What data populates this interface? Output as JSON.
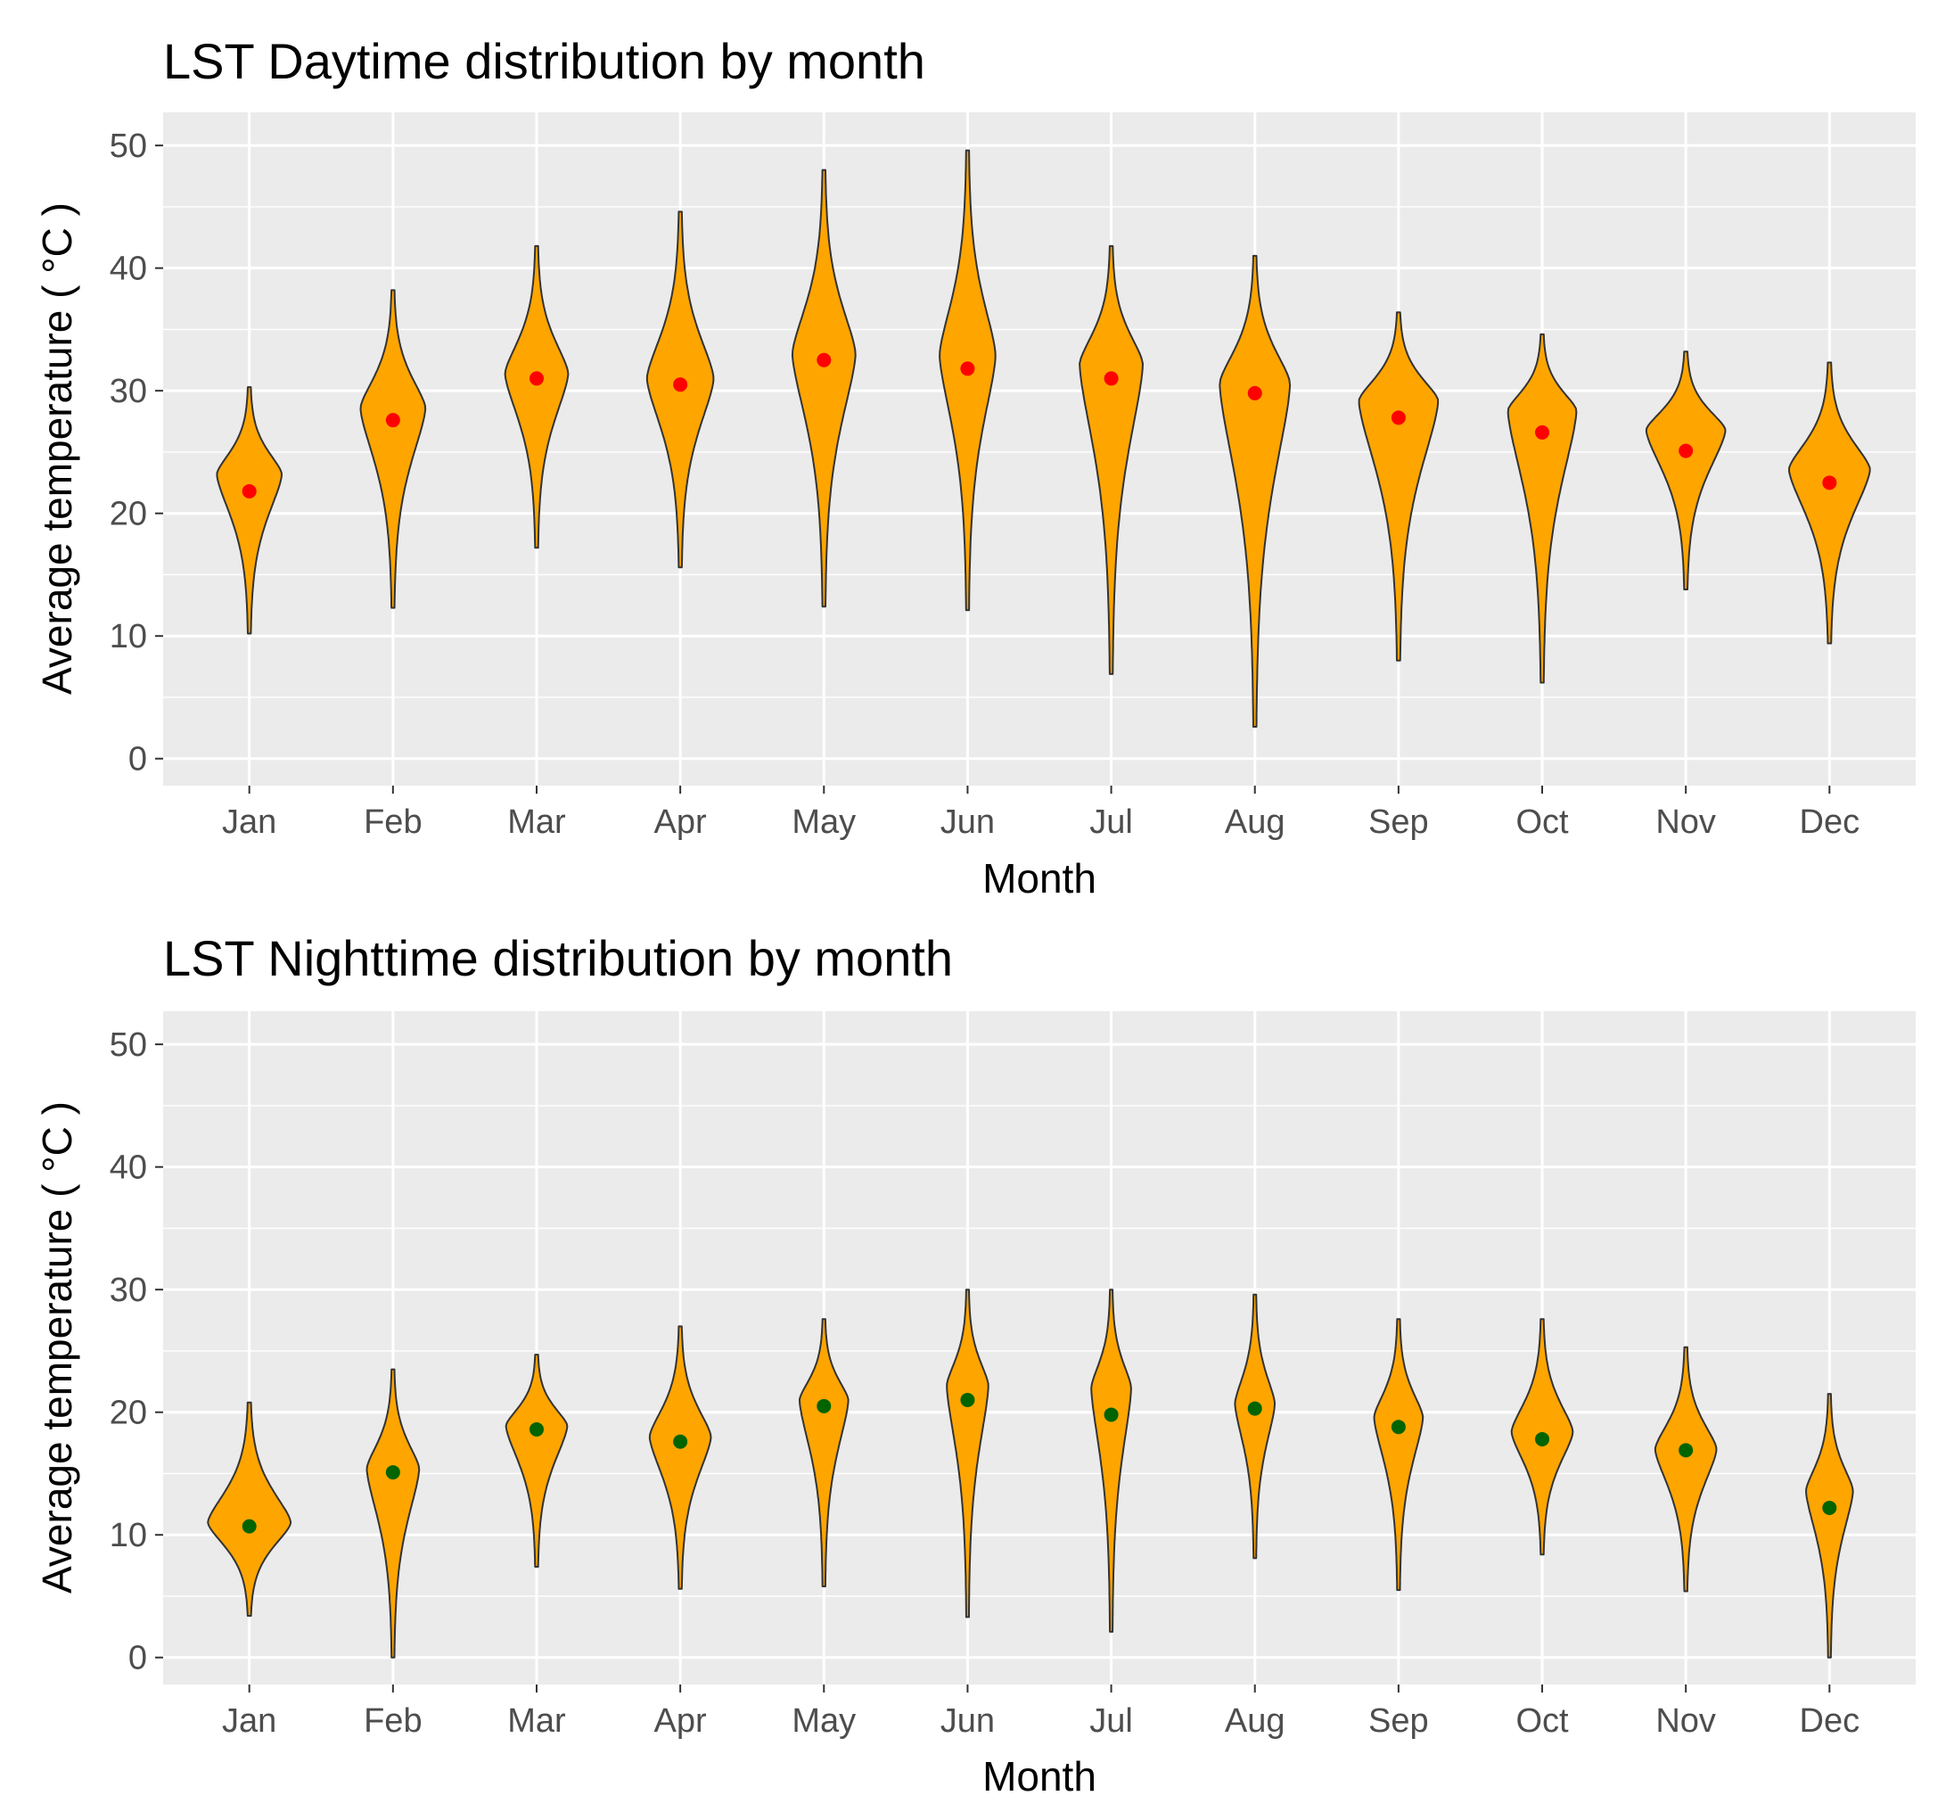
{
  "chart_data": [
    {
      "type": "violin",
      "title": "LST Daytime distribution by month",
      "xlabel": "Month",
      "ylabel": "Average temperature ( °C )",
      "ylim": [
        -2.2,
        52.7
      ],
      "yticks": [
        0,
        10,
        20,
        30,
        40,
        50
      ],
      "categories": [
        "Jan",
        "Feb",
        "Mar",
        "Apr",
        "May",
        "Jun",
        "Jul",
        "Aug",
        "Sep",
        "Oct",
        "Nov",
        "Dec"
      ],
      "fill_color": "#FFA500",
      "point_color": "#FF0000",
      "means": [
        21.8,
        27.6,
        31.0,
        30.5,
        32.5,
        31.8,
        31.0,
        29.8,
        27.8,
        26.6,
        25.1,
        22.5
      ],
      "mins": [
        10.2,
        12.3,
        17.2,
        15.6,
        12.4,
        12.1,
        6.9,
        2.6,
        8.0,
        6.2,
        13.8,
        9.4
      ],
      "maxs": [
        30.3,
        38.2,
        41.8,
        44.6,
        48.0,
        49.6,
        41.8,
        41.0,
        36.4,
        34.6,
        33.2,
        32.3
      ],
      "modes": [
        23.2,
        28.6,
        31.4,
        31.0,
        33.0,
        32.9,
        32.2,
        30.6,
        29.2,
        28.4,
        26.8,
        23.6
      ],
      "widths": [
        0.35,
        0.35,
        0.34,
        0.36,
        0.34,
        0.3,
        0.34,
        0.38,
        0.43,
        0.37,
        0.43,
        0.44
      ]
    },
    {
      "type": "violin",
      "title": "LST Nighttime distribution by month",
      "xlabel": "Month",
      "ylabel": "Average temperature ( °C )",
      "ylim": [
        -2.2,
        52.7
      ],
      "yticks": [
        0,
        10,
        20,
        30,
        40,
        50
      ],
      "categories": [
        "Jan",
        "Feb",
        "Mar",
        "Apr",
        "May",
        "Jun",
        "Jul",
        "Aug",
        "Sep",
        "Oct",
        "Nov",
        "Dec"
      ],
      "fill_color": "#FFA500",
      "point_color": "#006400",
      "means": [
        10.7,
        15.1,
        18.6,
        17.6,
        20.5,
        21.0,
        19.8,
        20.3,
        18.8,
        17.8,
        16.9,
        12.2
      ],
      "mins": [
        3.4,
        0.0,
        7.4,
        5.6,
        5.8,
        3.3,
        2.1,
        8.1,
        5.5,
        8.4,
        5.4,
        0.0
      ],
      "maxs": [
        20.8,
        23.5,
        24.7,
        27.0,
        27.6,
        30.0,
        30.0,
        29.6,
        27.6,
        27.6,
        25.3,
        21.5
      ],
      "modes": [
        11.0,
        15.4,
        18.9,
        18.0,
        21.0,
        22.2,
        22.0,
        20.7,
        19.6,
        18.4,
        17.0,
        13.6
      ],
      "widths": [
        0.45,
        0.28,
        0.33,
        0.33,
        0.26,
        0.22,
        0.21,
        0.21,
        0.26,
        0.33,
        0.33,
        0.25
      ]
    }
  ]
}
